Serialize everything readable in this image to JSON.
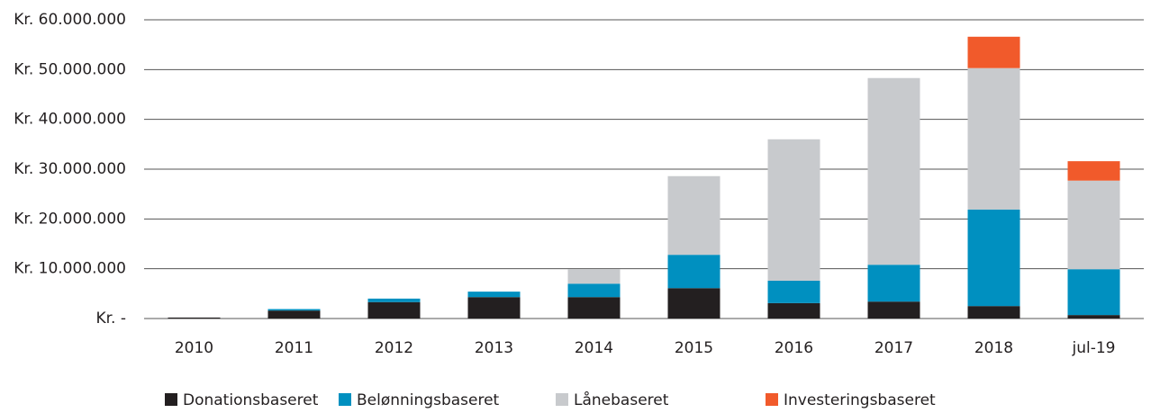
{
  "chart_data": {
    "type": "stacked_bar",
    "categories": [
      "2010",
      "2011",
      "2012",
      "2013",
      "2014",
      "2015",
      "2016",
      "2017",
      "2018",
      "jul-19"
    ],
    "series": [
      {
        "name": "Donationsbaseret",
        "color": "#231f20",
        "values": [
          200000,
          1600000,
          3300000,
          4300000,
          4300000,
          6100000,
          3100000,
          3400000,
          2500000,
          700000
        ]
      },
      {
        "name": "Belønningsbaseret",
        "color": "#0090c0",
        "values": [
          0,
          300000,
          700000,
          1100000,
          2700000,
          6700000,
          4500000,
          7400000,
          19400000,
          9200000
        ]
      },
      {
        "name": "Lånebaseret",
        "color": "#c8cacd",
        "values": [
          0,
          0,
          0,
          0,
          2900000,
          15800000,
          28400000,
          37500000,
          28400000,
          17800000
        ]
      },
      {
        "name": "Investeringsbaseret",
        "color": "#f15a2b",
        "values": [
          0,
          0,
          0,
          0,
          0,
          0,
          0,
          0,
          6300000,
          3900000
        ]
      }
    ],
    "ylim": [
      0,
      60000000
    ],
    "yticks": [
      {
        "value": 0,
        "label": "Kr. -"
      },
      {
        "value": 10000000,
        "label": "Kr. 10.000.000"
      },
      {
        "value": 20000000,
        "label": "Kr. 20.000.000"
      },
      {
        "value": 30000000,
        "label": "Kr. 30.000.000"
      },
      {
        "value": 40000000,
        "label": "Kr. 40.000.000"
      },
      {
        "value": 50000000,
        "label": "Kr. 50.000.000"
      },
      {
        "value": 60000000,
        "label": "Kr. 60.000.000"
      }
    ],
    "grid": true,
    "legend": "bottom"
  }
}
